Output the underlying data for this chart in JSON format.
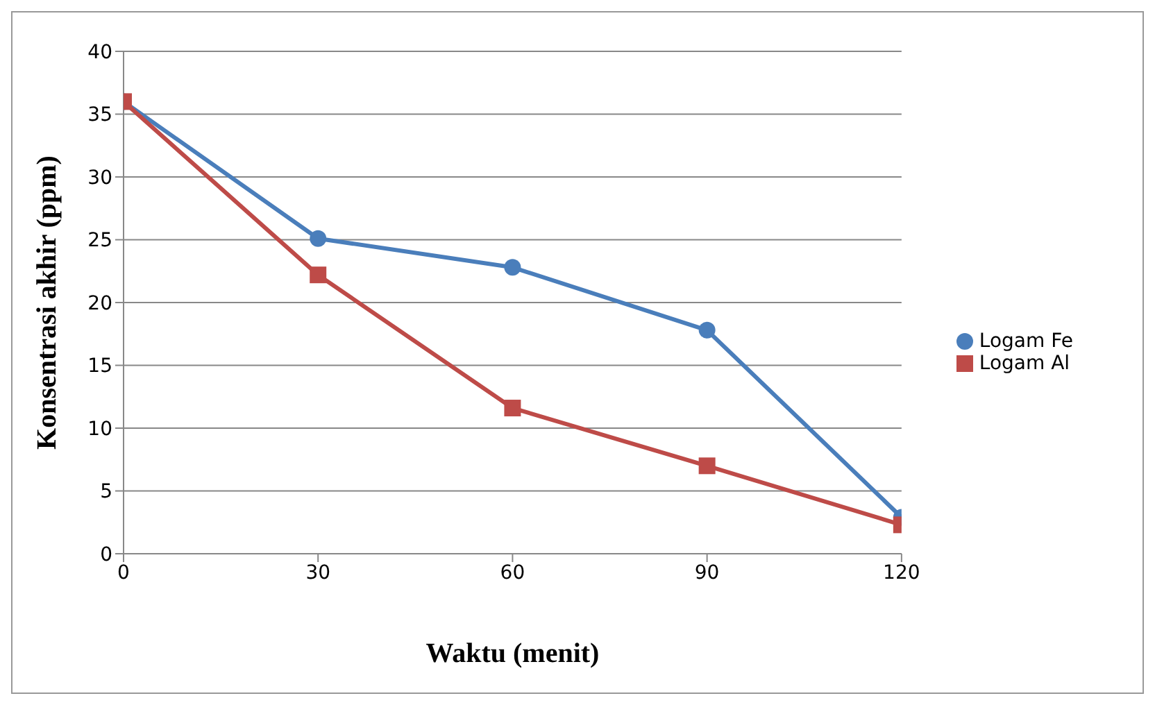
{
  "chart_data": {
    "type": "line",
    "xlabel": "Waktu (menit)",
    "ylabel": "Konsentrasi akhir (ppm)",
    "x": [
      0,
      30,
      60,
      90,
      120
    ],
    "xlim": [
      0,
      120
    ],
    "xticks": [
      0,
      30,
      60,
      90,
      120
    ],
    "ylim": [
      0,
      40
    ],
    "yticks": [
      0,
      5,
      10,
      15,
      20,
      25,
      30,
      35,
      40
    ],
    "grid": "y",
    "legend": "right",
    "series": [
      {
        "name": "Logam Fe",
        "color": "#4a7ebb",
        "marker": "circle",
        "values": [
          36,
          25.1,
          22.8,
          17.8,
          2.9
        ]
      },
      {
        "name": "Logam Al",
        "color": "#be4b48",
        "marker": "square",
        "values": [
          36,
          22.2,
          11.6,
          7,
          2.3
        ]
      }
    ]
  }
}
